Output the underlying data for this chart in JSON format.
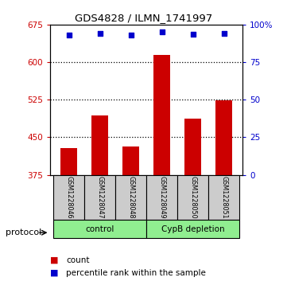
{
  "title": "GDS4828 / ILMN_1741997",
  "samples": [
    "GSM1228046",
    "GSM1228047",
    "GSM1228048",
    "GSM1228049",
    "GSM1228050",
    "GSM1228051"
  ],
  "counts": [
    428,
    493,
    432,
    614,
    487,
    524
  ],
  "percentile_ranks": [
    93,
    94,
    93,
    95,
    93.5,
    94
  ],
  "ylim_left": [
    375,
    675
  ],
  "ylim_right": [
    0,
    100
  ],
  "yticks_left": [
    375,
    450,
    525,
    600,
    675
  ],
  "yticks_right": [
    0,
    25,
    50,
    75,
    100
  ],
  "ytick_labels_right": [
    "0",
    "25",
    "50",
    "75",
    "100%"
  ],
  "bar_color": "#cc0000",
  "dot_color": "#0000cc",
  "bar_bottom": 375,
  "group_info": [
    {
      "start": 0,
      "end": 2,
      "label": "control",
      "color": "#90ee90"
    },
    {
      "start": 3,
      "end": 5,
      "label": "CypB depletion",
      "color": "#90ee90"
    }
  ],
  "sample_box_color": "#cccccc",
  "protocol_label": "protocol",
  "legend_count_label": "count",
  "legend_pct_label": "percentile rank within the sample",
  "plot_area_color": "#ffffff",
  "gridlines": [
    450,
    525,
    600
  ]
}
